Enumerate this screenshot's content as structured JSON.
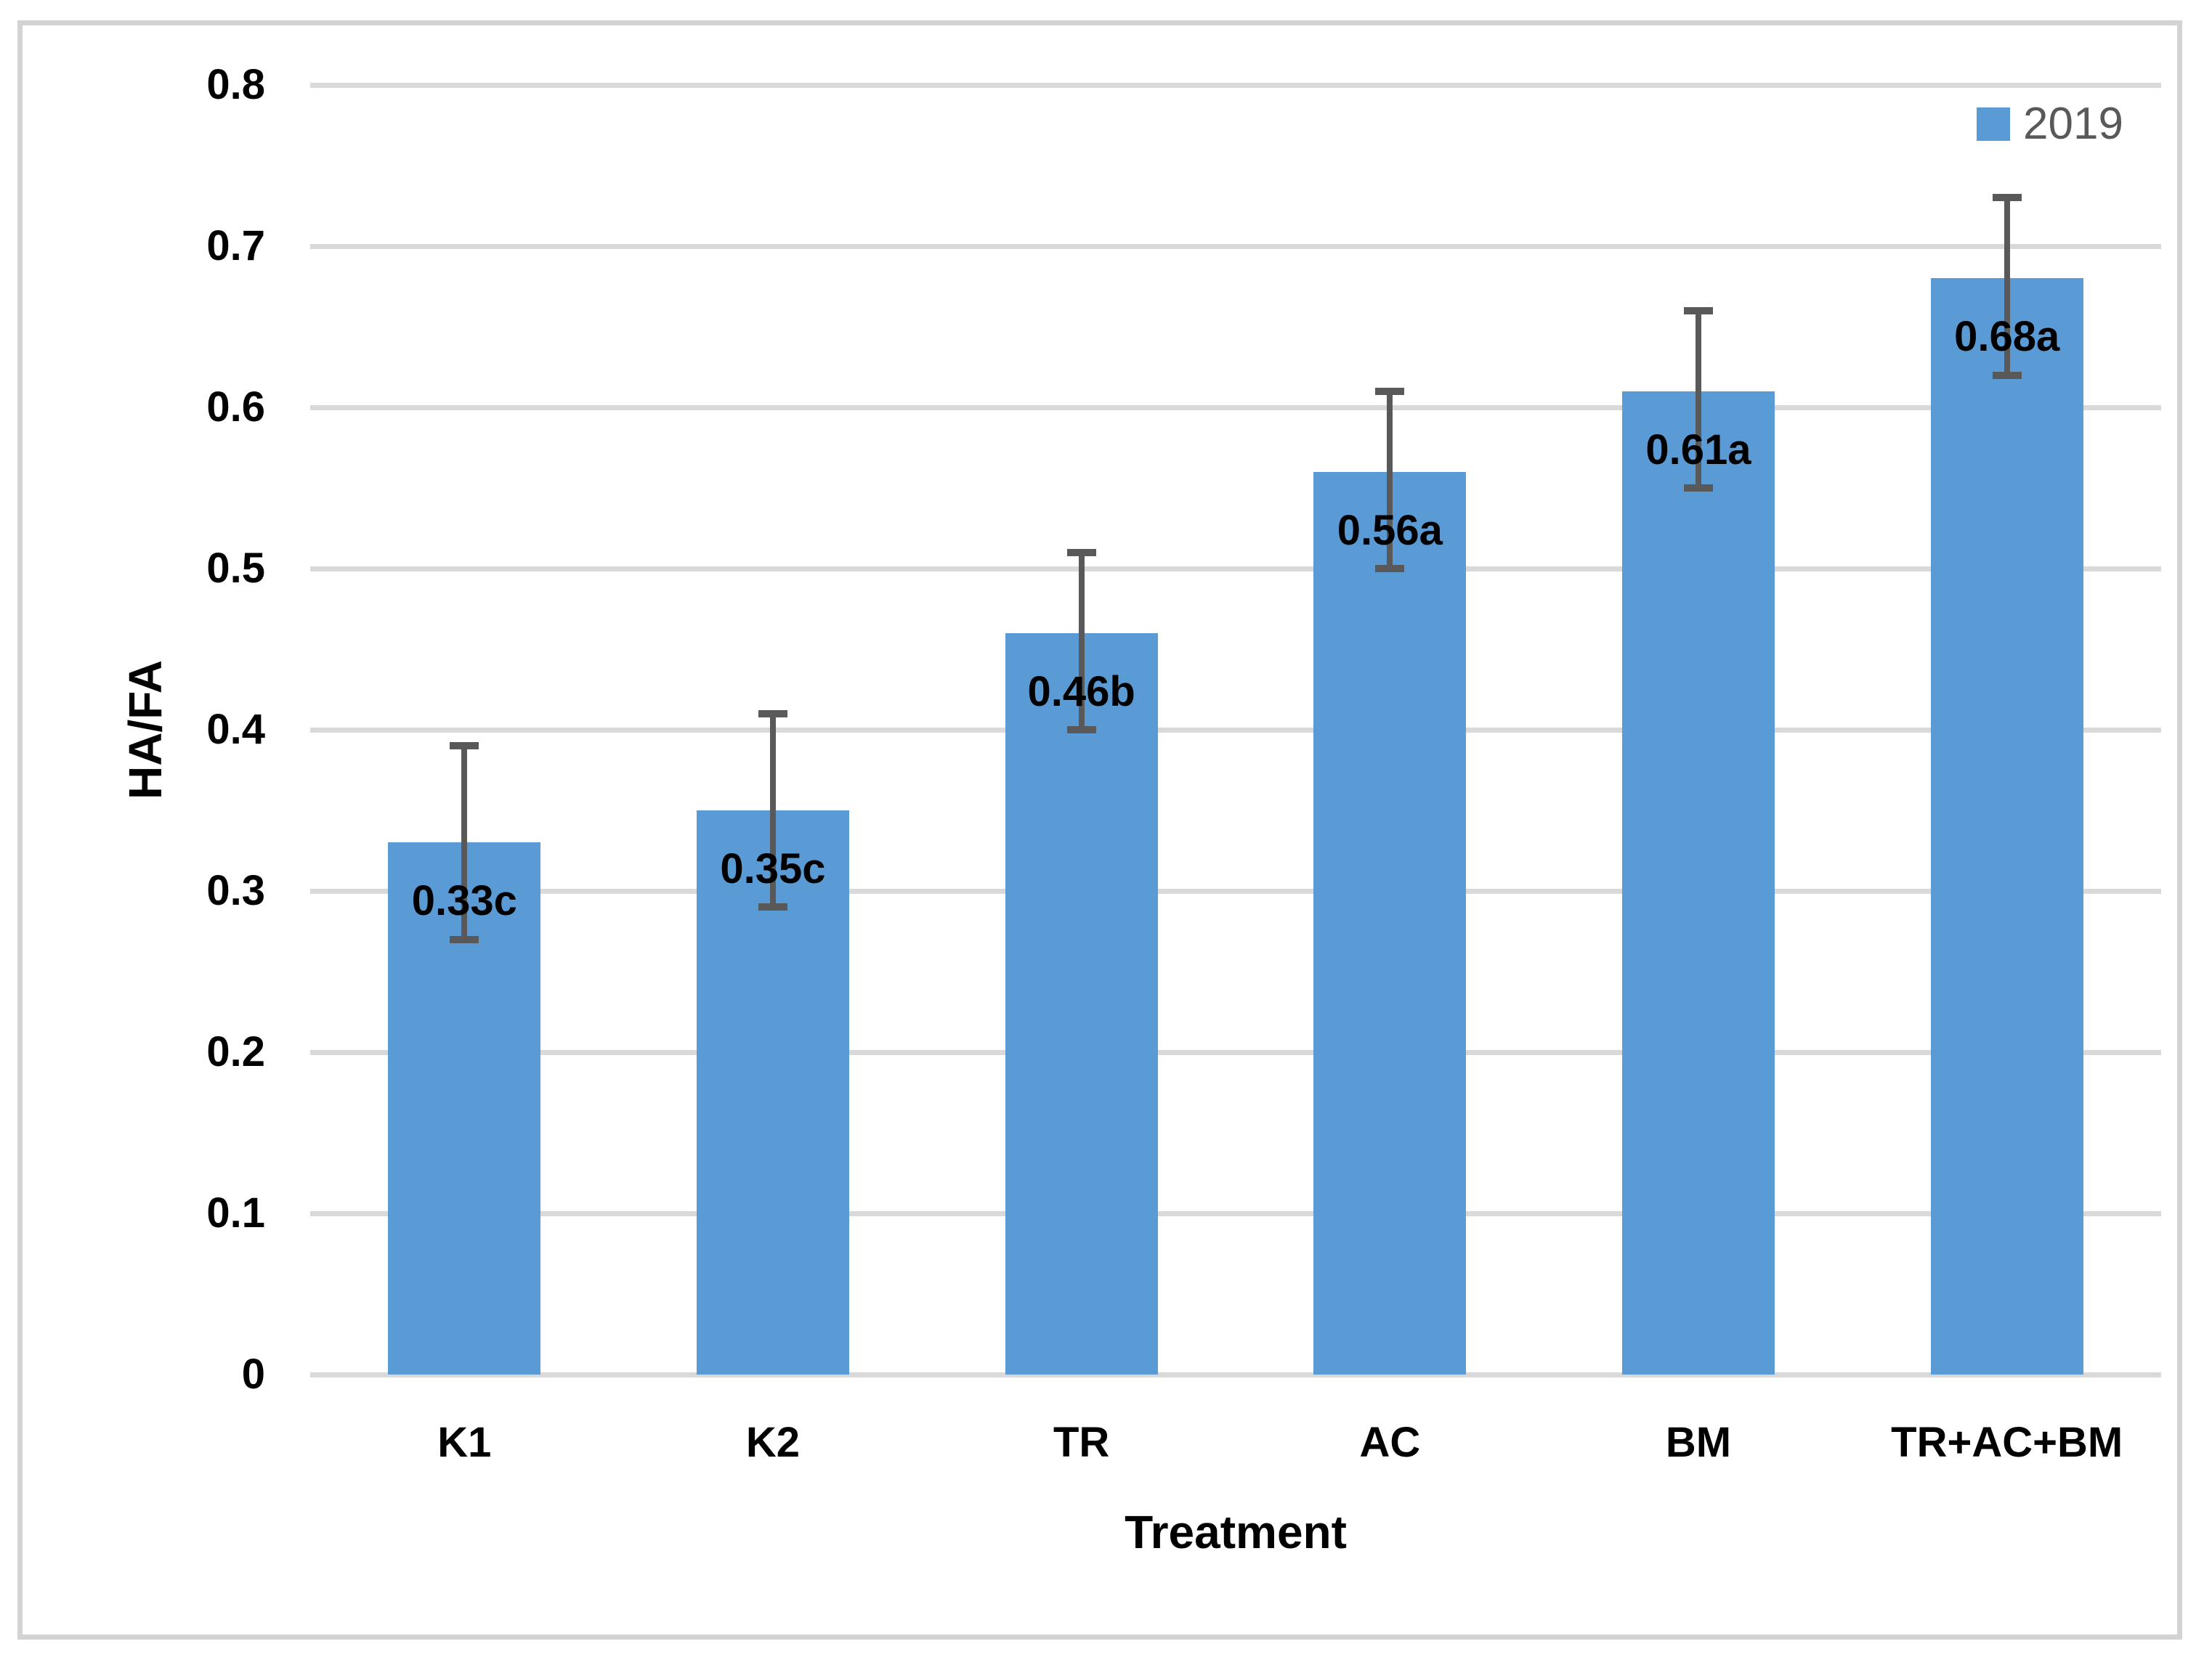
{
  "figure": {
    "background_color": "#FFFFFF",
    "border_color": "#D3D3D3"
  },
  "chart_data": {
    "type": "bar",
    "title": "",
    "xlabel": "Treatment",
    "ylabel": "HA/FA",
    "categories": [
      "K1",
      "K2",
      "TR",
      "AC",
      "BM",
      "TR+AC+BM"
    ],
    "series": [
      {
        "name": "2019",
        "values": [
          0.33,
          0.35,
          0.46,
          0.56,
          0.61,
          0.68
        ],
        "data_labels": [
          "0.33c",
          "0.35c",
          "0.46b",
          "0.56a",
          "0.61a",
          "0.68a"
        ],
        "error_whisker_top": [
          0.39,
          0.41,
          0.51,
          0.61,
          0.66,
          0.73
        ],
        "error_whisker_bottom": [
          0.27,
          0.29,
          0.4,
          0.5,
          0.55,
          0.62
        ],
        "color": "#5B9BD5"
      }
    ],
    "ylim": [
      0,
      0.8
    ],
    "ytick_step": 0.1,
    "ytick_labels": [
      "0.8",
      "0.7",
      "0.6",
      "0.5",
      "0.4",
      "0.3",
      "0.2",
      "0.1",
      "0"
    ],
    "grid": "horizontal",
    "legend_position": "top-right",
    "colors": {
      "bar_fill": "#5B9BD5",
      "error_bar": "#595959",
      "gridline": "#D9D9D9",
      "tick_label": "#000000",
      "data_label": "#000000",
      "legend_text": "#595959"
    }
  }
}
